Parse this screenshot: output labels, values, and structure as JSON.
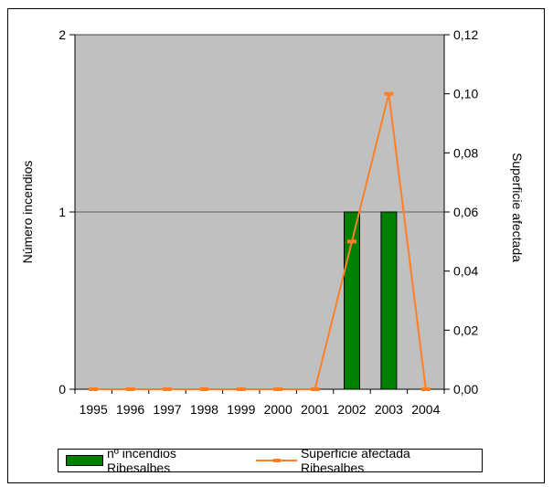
{
  "chart_data": {
    "type": "bar",
    "categories": [
      "1995",
      "1996",
      "1997",
      "1998",
      "1999",
      "2000",
      "2001",
      "2002",
      "2003",
      "2004"
    ],
    "series": [
      {
        "name": "nº incendios Ribesalbes",
        "type": "bar",
        "axis": "left",
        "color": "#008000",
        "values": [
          0,
          0,
          0,
          0,
          0,
          0,
          0,
          1,
          1,
          0
        ]
      },
      {
        "name": "Superficie afectada Ribesalbes",
        "type": "line",
        "axis": "right",
        "color": "#ff7f27",
        "values": [
          0,
          0,
          0,
          0,
          0,
          0,
          0,
          0.05,
          0.1,
          0
        ]
      }
    ],
    "ylabel": "Número incendios",
    "y2label": "Superficie afectada",
    "ylim": [
      0,
      2
    ],
    "y2lim": [
      0,
      0.12
    ],
    "yticks": [
      "0",
      "1",
      "2"
    ],
    "y2ticks": [
      "0,00",
      "0,02",
      "0,04",
      "0,06",
      "0,08",
      "0,10",
      "0,12"
    ],
    "plot_background": "#c0c0c0",
    "gridlines": "horizontal major",
    "legend_position": "bottom"
  }
}
